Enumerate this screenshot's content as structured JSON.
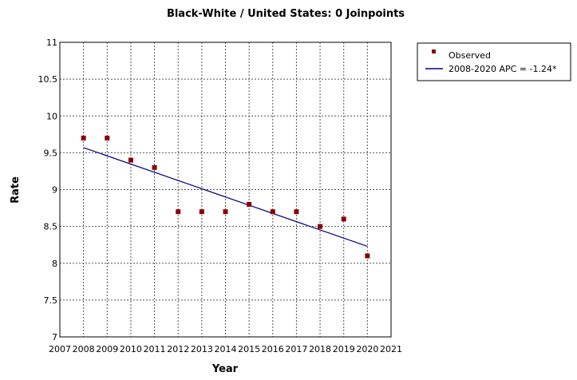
{
  "chart_data": {
    "type": "scatter",
    "title": "Black-White / United States: 0 Joinpoints",
    "xlabel": "Year",
    "ylabel": "Rate",
    "xlim": [
      2007,
      2021
    ],
    "ylim": [
      7,
      11
    ],
    "x_ticks": [
      "2007",
      "2008",
      "2009",
      "2010",
      "2011",
      "2012",
      "2013",
      "2014",
      "2015",
      "2016",
      "2017",
      "2018",
      "2019",
      "2020",
      "2021"
    ],
    "y_ticks": [
      "7",
      "7.5",
      "8",
      "8.5",
      "9",
      "9.5",
      "10",
      "10.5",
      "11"
    ],
    "grid": true,
    "legend_position": "top-right outside",
    "series": [
      {
        "name": "Observed",
        "kind": "marker",
        "color": "#8b0000",
        "x": [
          2008,
          2009,
          2010,
          2011,
          2012,
          2013,
          2014,
          2015,
          2016,
          2017,
          2018,
          2019,
          2020
        ],
        "y": [
          9.7,
          9.7,
          9.4,
          9.3,
          8.7,
          8.7,
          8.7,
          8.8,
          8.7,
          8.7,
          8.5,
          8.6,
          8.1
        ]
      },
      {
        "name": "2008-2020 APC  = -1.24*",
        "kind": "line",
        "color": "#00008b",
        "x": [
          2008,
          2020
        ],
        "y": [
          9.57,
          8.23
        ]
      }
    ]
  }
}
